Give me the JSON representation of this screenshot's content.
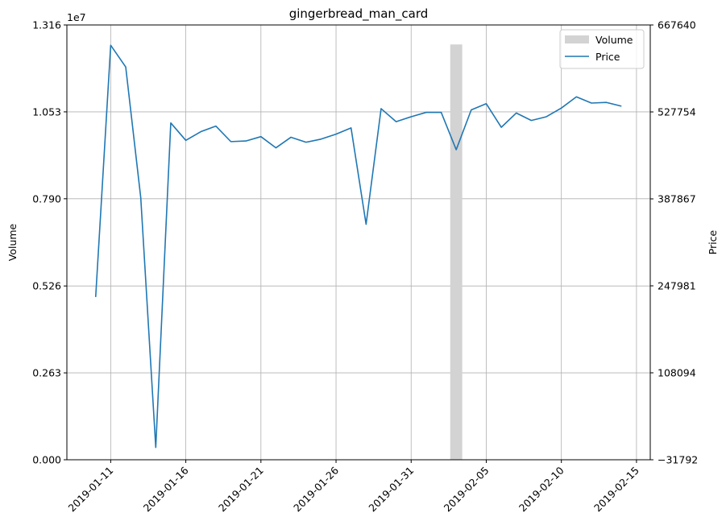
{
  "chart_data": {
    "type": "bar+line",
    "title": "gingerbread_man_card",
    "left_axis": {
      "label": "Volume",
      "exponent_label": "1e7",
      "ylim": [
        0,
        1.316
      ],
      "ticks": [
        0,
        0.263,
        0.526,
        0.79,
        1.053,
        1.316
      ],
      "tick_labels": [
        "0.000",
        "0.263",
        "0.526",
        "0.790",
        "1.053",
        "1.316"
      ]
    },
    "right_axis": {
      "label": "Price",
      "ylim": [
        -31792,
        667640
      ],
      "ticks": [
        -31792,
        108094,
        247981,
        387867,
        527754,
        667640
      ],
      "tick_labels": [
        "−31792",
        "108094",
        "247981",
        "387867",
        "527754",
        "667640"
      ]
    },
    "x_axis": {
      "xlim": [
        "2019-01-08T02:00",
        "2019-02-15T22:00"
      ],
      "ticks": [
        "2019-01-11",
        "2019-01-16",
        "2019-01-21",
        "2019-01-26",
        "2019-01-31",
        "2019-02-05",
        "2019-02-10",
        "2019-02-15"
      ],
      "tick_labels": [
        "2019-01-11",
        "2019-01-16",
        "2019-01-21",
        "2019-01-26",
        "2019-01-31",
        "2019-02-05",
        "2019-02-10",
        "2019-02-15"
      ]
    },
    "grid": true,
    "legend": {
      "placement": "top-right",
      "entries": [
        {
          "label": "Volume",
          "kind": "bar",
          "color": "#d3d3d3"
        },
        {
          "label": "Price",
          "kind": "line",
          "color": "#1f77b4"
        }
      ]
    },
    "series": [
      {
        "name": "Volume",
        "kind": "bar",
        "axis": "left",
        "color": "#d3d3d3",
        "points": [
          {
            "x": "2019-02-03",
            "y": 1.257
          }
        ]
      },
      {
        "name": "Price",
        "kind": "line",
        "axis": "right",
        "color": "#1f77b4",
        "points": [
          {
            "x": "2019-01-10",
            "y": 230000
          },
          {
            "x": "2019-01-11",
            "y": 635000
          },
          {
            "x": "2019-01-12",
            "y": 600000
          },
          {
            "x": "2019-01-13",
            "y": 390000
          },
          {
            "x": "2019-01-14",
            "y": -12000
          },
          {
            "x": "2019-01-15",
            "y": 510000
          },
          {
            "x": "2019-01-16",
            "y": 482000
          },
          {
            "x": "2019-01-17",
            "y": 496000
          },
          {
            "x": "2019-01-18",
            "y": 505000
          },
          {
            "x": "2019-01-19",
            "y": 480000
          },
          {
            "x": "2019-01-20",
            "y": 481000
          },
          {
            "x": "2019-01-21",
            "y": 488000
          },
          {
            "x": "2019-01-22",
            "y": 470000
          },
          {
            "x": "2019-01-23",
            "y": 487000
          },
          {
            "x": "2019-01-24",
            "y": 479000
          },
          {
            "x": "2019-01-25",
            "y": 484000
          },
          {
            "x": "2019-01-26",
            "y": 492000
          },
          {
            "x": "2019-01-27",
            "y": 502000
          },
          {
            "x": "2019-01-28",
            "y": 347000
          },
          {
            "x": "2019-01-29",
            "y": 533000
          },
          {
            "x": "2019-01-30",
            "y": 512000
          },
          {
            "x": "2019-01-31",
            "y": 520000
          },
          {
            "x": "2019-02-01",
            "y": 527000
          },
          {
            "x": "2019-02-02",
            "y": 527000
          },
          {
            "x": "2019-02-03",
            "y": 467000
          },
          {
            "x": "2019-02-04",
            "y": 531000
          },
          {
            "x": "2019-02-05",
            "y": 541000
          },
          {
            "x": "2019-02-06",
            "y": 503000
          },
          {
            "x": "2019-02-07",
            "y": 526000
          },
          {
            "x": "2019-02-08",
            "y": 514000
          },
          {
            "x": "2019-02-09",
            "y": 520000
          },
          {
            "x": "2019-02-10",
            "y": 534000
          },
          {
            "x": "2019-02-11",
            "y": 552000
          },
          {
            "x": "2019-02-12",
            "y": 542000
          },
          {
            "x": "2019-02-13",
            "y": 543000
          },
          {
            "x": "2019-02-14",
            "y": 537000
          }
        ]
      }
    ]
  }
}
